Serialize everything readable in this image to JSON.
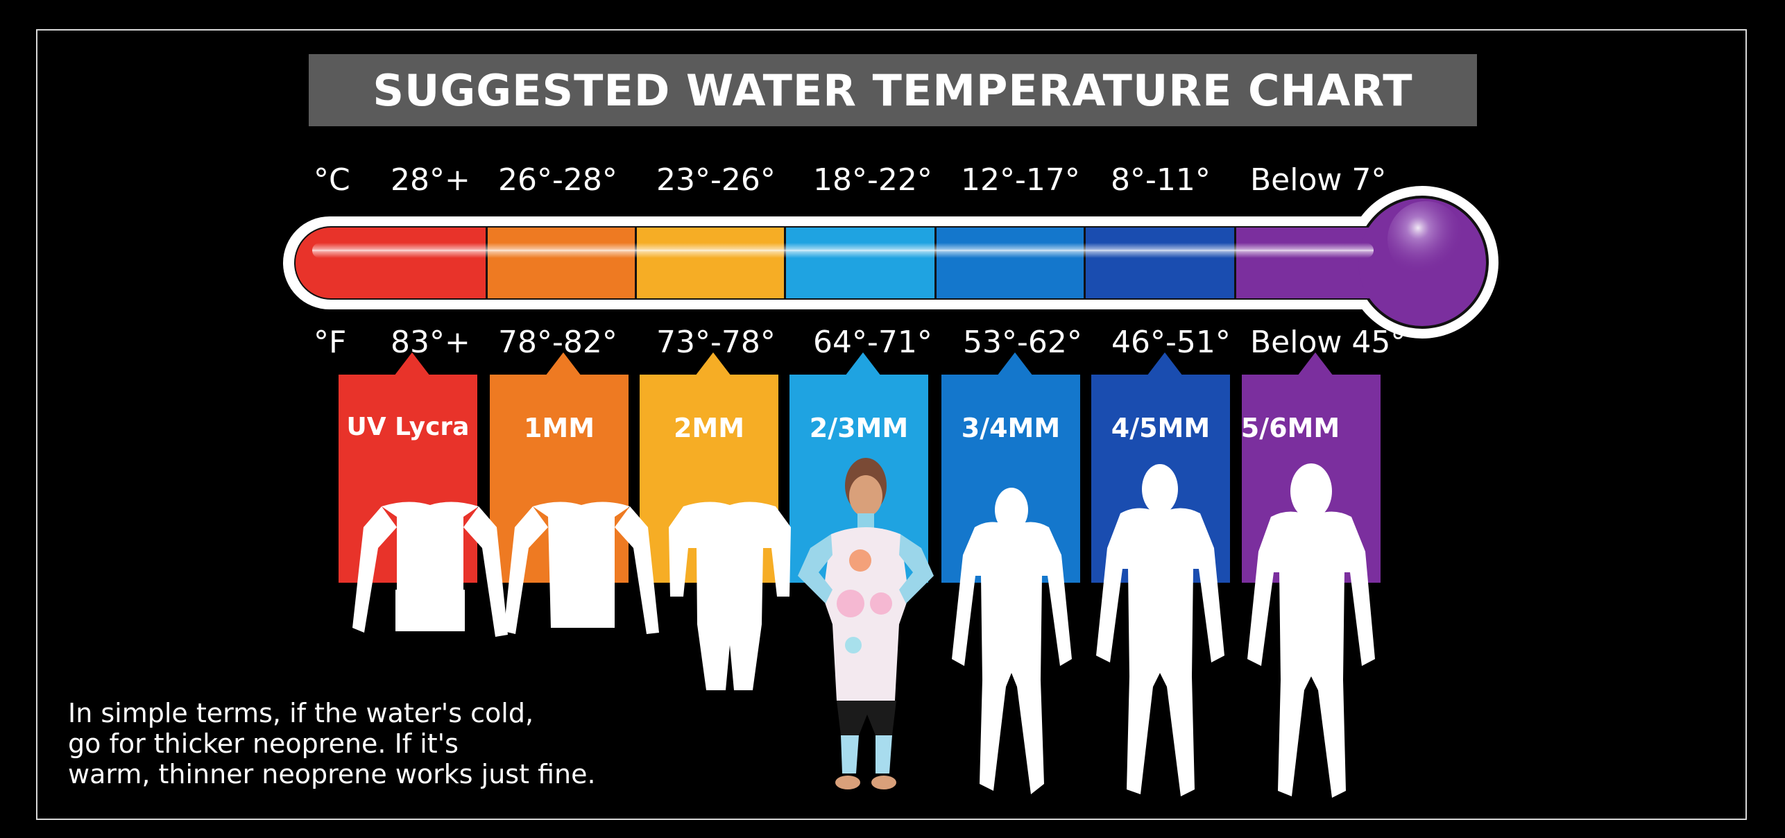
{
  "title": "SUGGESTED WATER TEMPERATURE CHART",
  "celsius": {
    "unit": "°C",
    "ranges": [
      "28°+",
      "26°-28°",
      "23°-26°",
      "18°-22°",
      "12°-17°",
      "8°-11°",
      "Below 7°"
    ]
  },
  "fahrenheit": {
    "unit": "°F",
    "ranges": [
      "83°+",
      "78°-82°",
      "73°-78°",
      "64°-71°",
      "53°-62°",
      "46°-51°",
      "Below 45°"
    ]
  },
  "suits": [
    {
      "label": "UV Lycra",
      "color": "#e8332a"
    },
    {
      "label": "1MM",
      "color": "#ee7a22"
    },
    {
      "label": "2MM",
      "color": "#f6ad25"
    },
    {
      "label": "2/3MM",
      "color": "#1fa3e1"
    },
    {
      "label": "3/4MM",
      "color": "#1477cc"
    },
    {
      "label": "4/5MM",
      "color": "#1a4db0"
    },
    {
      "label": "5/6MM",
      "color": "#7b2f9e"
    }
  ],
  "note": {
    "line1": "In simple terms, if the water's cold,",
    "line2": "go for thicker neoprene. If it's",
    "line3": "warm, thinner neoprene works just fine."
  }
}
